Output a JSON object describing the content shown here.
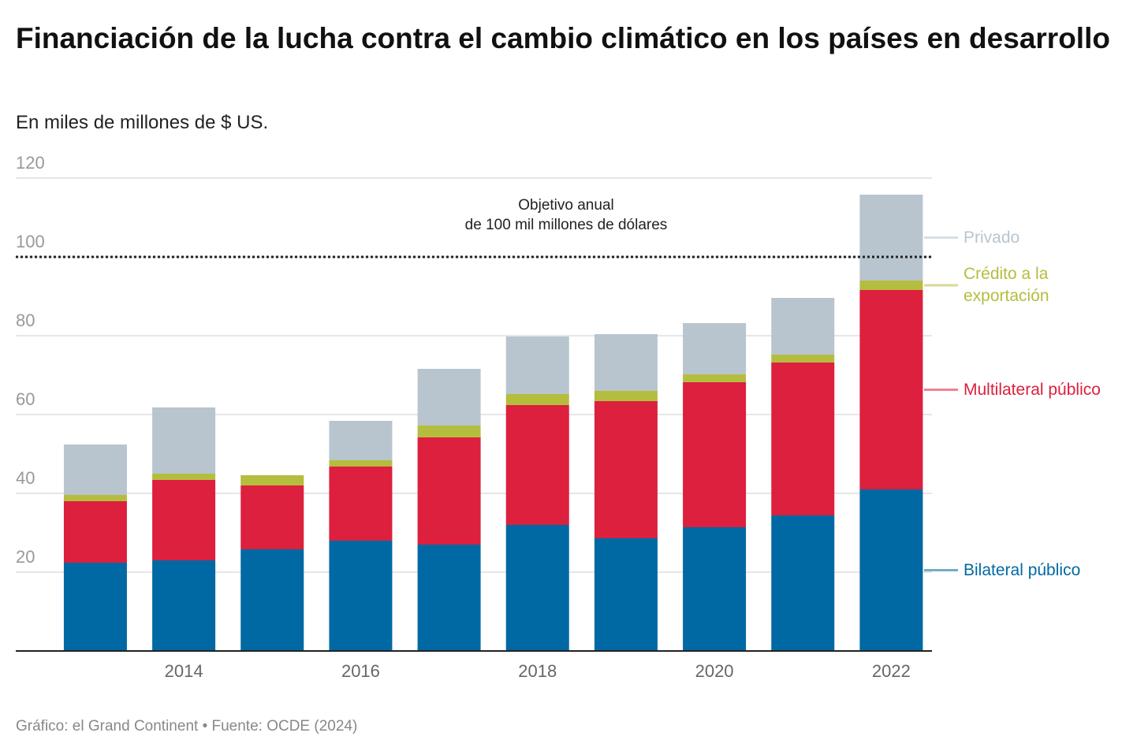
{
  "chart_data": {
    "type": "stacked-bar",
    "title": "Financiación de la lucha contra el cambio climático en los países en desarrollo",
    "subtitle": "En miles de millones de $ US.",
    "source": "Gráfico: el Grand Continent • Fuente: OCDE (2024)",
    "x": [
      2013,
      2014,
      2015,
      2016,
      2017,
      2018,
      2019,
      2020,
      2021,
      2022
    ],
    "xlim": [
      2012.1,
      2022.46
    ],
    "xticks": [
      2014,
      2016,
      2018,
      2020,
      2022
    ],
    "ylim": [
      0,
      120
    ],
    "yticks": [
      20,
      40,
      60,
      80,
      100,
      120
    ],
    "grid": true,
    "target": {
      "value": 100,
      "label": [
        "Objetivo anual",
        "de 100 mil millones de dólares"
      ]
    },
    "series": [
      {
        "name": "Bilateral público",
        "color": "#0069a3",
        "values": [
          22.4,
          23.0,
          25.8,
          28.0,
          27.0,
          32.0,
          28.6,
          31.4,
          34.4,
          41.0
        ]
      },
      {
        "name": "Multilateral público",
        "color": "#dc203e",
        "values": [
          15.6,
          20.4,
          16.2,
          18.8,
          27.2,
          30.4,
          34.8,
          36.8,
          38.8,
          50.6
        ]
      },
      {
        "name": "Crédito a la exportación",
        "color": "#b5bd3e",
        "values": [
          1.6,
          1.6,
          2.6,
          1.6,
          3.0,
          2.8,
          2.6,
          2.0,
          2.0,
          2.4
        ]
      },
      {
        "name": "Privado",
        "color": "#b8c5cf",
        "values": [
          12.8,
          16.8,
          null,
          10.0,
          14.4,
          14.6,
          14.4,
          13.0,
          14.4,
          21.8
        ]
      }
    ]
  }
}
